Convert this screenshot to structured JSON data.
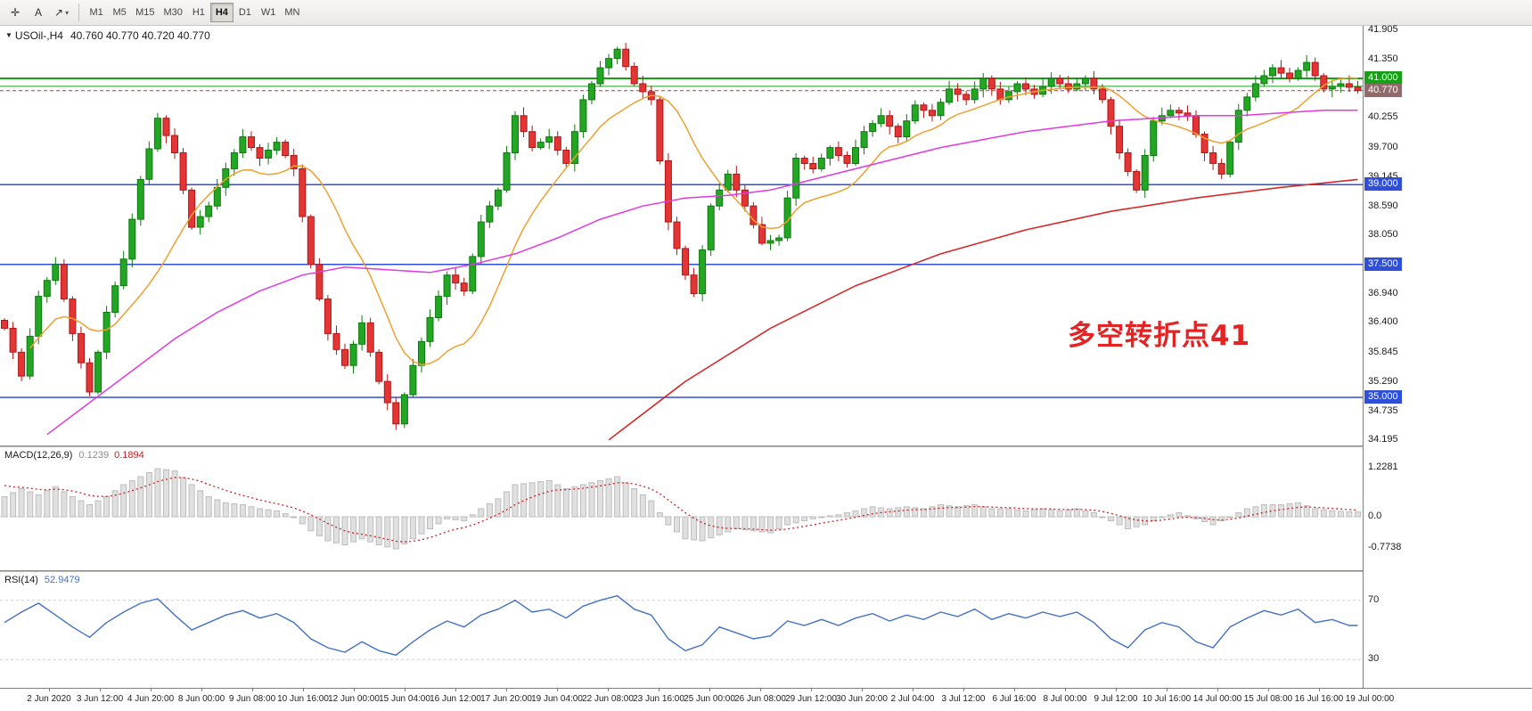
{
  "toolbar": {
    "tools": [
      {
        "name": "crosshair",
        "glyph": "✛"
      },
      {
        "name": "text",
        "glyph": "A"
      },
      {
        "name": "arrows",
        "glyph": "↗",
        "dropdown": "▾"
      }
    ],
    "timeframes": [
      "M1",
      "M5",
      "M15",
      "M30",
      "H1",
      "H4",
      "D1",
      "W1",
      "MN"
    ],
    "active_timeframe": "H4"
  },
  "chart": {
    "dropdown_icon": "▼",
    "title": "USOil-,H4",
    "ohlc": "40.760 40.770 40.720 40.770"
  },
  "indicators": {
    "macd": {
      "label": "MACD(12,26,9)",
      "value_main": "0.1239",
      "value_signal": "0.1894",
      "axis_labels": [
        {
          "text": "1.2281",
          "value": 1.2281
        },
        {
          "text": "0.0",
          "value": 0
        },
        {
          "text": "-0.7738",
          "value": -0.7738
        }
      ]
    },
    "rsi": {
      "label": "RSI(14)",
      "value": "52.9479",
      "levels": [
        70,
        30
      ],
      "axis_labels": [
        {
          "text": "70",
          "value": 70
        },
        {
          "text": "30",
          "value": 30
        }
      ]
    }
  },
  "annotation": {
    "text": "多空转折点41"
  },
  "price_axis": {
    "labels": [
      "41.905",
      "41.350",
      "40.255",
      "39.700",
      "39.145",
      "38.590",
      "38.050",
      "36.940",
      "36.400",
      "35.845",
      "35.290",
      "34.735",
      "34.195"
    ],
    "special": [
      {
        "text": "41.000",
        "price": 41.0,
        "style": "green"
      },
      {
        "text": "40.770",
        "price": 40.77,
        "style": "last"
      },
      {
        "text": "39.000",
        "price": 39.0,
        "style": "blue"
      },
      {
        "text": "37.500",
        "price": 37.5,
        "style": "blue"
      },
      {
        "text": "35.000",
        "price": 35.0,
        "style": "blue"
      }
    ]
  },
  "time_axis": {
    "labels": [
      "2 Jun 2020",
      "3 Jun 12:00",
      "4 Jun 20:00",
      "8 Jun 00:00",
      "9 Jun 08:00",
      "10 Jun 16:00",
      "12 Jun 00:00",
      "15 Jun 04:00",
      "16 Jun 12:00",
      "17 Jun 20:00",
      "19 Jun 04:00",
      "22 Jun 08:00",
      "23 Jun 16:00",
      "25 Jun 00:00",
      "26 Jun 08:00",
      "29 Jun 12:00",
      "30 Jun 20:00",
      "2 Jul 04:00",
      "3 Jul 12:00",
      "6 Jul 16:00",
      "8 Jul 00:00",
      "9 Jul 12:00",
      "10 Jul 16:00",
      "14 Jul 00:00",
      "15 Jul 08:00",
      "16 Jul 16:00",
      "19 Jul 00:00"
    ]
  },
  "chart_data": {
    "type": "candlestick",
    "symbol": "USOil",
    "timeframe": "H4",
    "bars": 160,
    "price_min": 34.195,
    "price_max": 41.905,
    "last_price": 40.77,
    "close_waypoints": [
      [
        0,
        36.3
      ],
      [
        2,
        35.4
      ],
      [
        4,
        36.9
      ],
      [
        6,
        37.5
      ],
      [
        8,
        36.2
      ],
      [
        10,
        35.1
      ],
      [
        12,
        36.6
      ],
      [
        14,
        37.6
      ],
      [
        16,
        39.1
      ],
      [
        18,
        40.25
      ],
      [
        20,
        39.6
      ],
      [
        22,
        38.2
      ],
      [
        24,
        38.6
      ],
      [
        26,
        39.3
      ],
      [
        28,
        39.9
      ],
      [
        30,
        39.5
      ],
      [
        32,
        39.8
      ],
      [
        34,
        39.3
      ],
      [
        36,
        37.5
      ],
      [
        38,
        36.2
      ],
      [
        40,
        35.6
      ],
      [
        42,
        36.4
      ],
      [
        44,
        35.3
      ],
      [
        46,
        34.5
      ],
      [
        48,
        35.6
      ],
      [
        50,
        36.5
      ],
      [
        52,
        37.3
      ],
      [
        54,
        37.0
      ],
      [
        56,
        38.3
      ],
      [
        58,
        38.9
      ],
      [
        60,
        40.3
      ],
      [
        62,
        39.7
      ],
      [
        64,
        39.9
      ],
      [
        66,
        39.4
      ],
      [
        68,
        40.6
      ],
      [
        70,
        41.2
      ],
      [
        72,
        41.55
      ],
      [
        74,
        40.9
      ],
      [
        76,
        40.6
      ],
      [
        78,
        38.3
      ],
      [
        80,
        37.3
      ],
      [
        81,
        36.95
      ],
      [
        83,
        38.6
      ],
      [
        85,
        39.2
      ],
      [
        87,
        38.6
      ],
      [
        89,
        37.9
      ],
      [
        91,
        38.0
      ],
      [
        93,
        39.5
      ],
      [
        95,
        39.3
      ],
      [
        97,
        39.7
      ],
      [
        99,
        39.4
      ],
      [
        101,
        40.0
      ],
      [
        103,
        40.3
      ],
      [
        105,
        39.9
      ],
      [
        107,
        40.5
      ],
      [
        109,
        40.3
      ],
      [
        111,
        40.8
      ],
      [
        113,
        40.6
      ],
      [
        115,
        41.0
      ],
      [
        117,
        40.6
      ],
      [
        119,
        40.9
      ],
      [
        121,
        40.7
      ],
      [
        123,
        41.0
      ],
      [
        125,
        40.8
      ],
      [
        127,
        41.0
      ],
      [
        129,
        40.6
      ],
      [
        131,
        39.6
      ],
      [
        133,
        38.9
      ],
      [
        135,
        40.2
      ],
      [
        137,
        40.4
      ],
      [
        139,
        40.3
      ],
      [
        141,
        39.6
      ],
      [
        143,
        39.2
      ],
      [
        145,
        40.4
      ],
      [
        147,
        40.9
      ],
      [
        149,
        41.2
      ],
      [
        151,
        41.0
      ],
      [
        153,
        41.3
      ],
      [
        155,
        40.8
      ],
      [
        157,
        40.9
      ],
      [
        159,
        40.77
      ]
    ],
    "ma_fast_period": 12,
    "ma_mid_waypoints": [
      [
        5,
        34.3
      ],
      [
        10,
        34.9
      ],
      [
        15,
        35.5
      ],
      [
        20,
        36.1
      ],
      [
        25,
        36.6
      ],
      [
        30,
        37.0
      ],
      [
        35,
        37.3
      ],
      [
        40,
        37.45
      ],
      [
        45,
        37.4
      ],
      [
        50,
        37.35
      ],
      [
        55,
        37.5
      ],
      [
        60,
        37.7
      ],
      [
        65,
        38.0
      ],
      [
        70,
        38.35
      ],
      [
        75,
        38.6
      ],
      [
        80,
        38.75
      ],
      [
        85,
        38.8
      ],
      [
        90,
        38.9
      ],
      [
        95,
        39.1
      ],
      [
        100,
        39.3
      ],
      [
        105,
        39.5
      ],
      [
        110,
        39.7
      ],
      [
        115,
        39.85
      ],
      [
        120,
        40.0
      ],
      [
        125,
        40.1
      ],
      [
        130,
        40.2
      ],
      [
        135,
        40.25
      ],
      [
        140,
        40.3
      ],
      [
        145,
        40.3
      ],
      [
        150,
        40.35
      ],
      [
        155,
        40.4
      ],
      [
        159,
        40.4
      ]
    ],
    "ma_slow_waypoints": [
      [
        71,
        34.2
      ],
      [
        80,
        35.3
      ],
      [
        90,
        36.3
      ],
      [
        100,
        37.1
      ],
      [
        110,
        37.7
      ],
      [
        120,
        38.15
      ],
      [
        130,
        38.5
      ],
      [
        140,
        38.75
      ],
      [
        150,
        38.95
      ],
      [
        159,
        39.1
      ]
    ],
    "hlines": [
      {
        "price": 41.0,
        "style": "green",
        "width": 2
      },
      {
        "price": 40.85,
        "style": "green",
        "width": 1
      },
      {
        "price": 39.0,
        "style": "blue",
        "width": 1.5
      },
      {
        "price": 37.5,
        "style": "blue",
        "width": 1.5
      },
      {
        "price": 35.0,
        "style": "blue",
        "width": 1.5
      },
      {
        "price": 40.77,
        "style": "last",
        "width": 1
      }
    ],
    "macd": {
      "signal_period": 9,
      "signal_start": 0.85,
      "hist_waypoints": [
        [
          0,
          0.5
        ],
        [
          2,
          0.7
        ],
        [
          4,
          0.55
        ],
        [
          6,
          0.75
        ],
        [
          8,
          0.5
        ],
        [
          10,
          0.3
        ],
        [
          12,
          0.5
        ],
        [
          14,
          0.8
        ],
        [
          16,
          1.0
        ],
        [
          18,
          1.2
        ],
        [
          20,
          1.15
        ],
        [
          22,
          0.8
        ],
        [
          24,
          0.5
        ],
        [
          26,
          0.35
        ],
        [
          28,
          0.3
        ],
        [
          30,
          0.2
        ],
        [
          32,
          0.15
        ],
        [
          34,
          0.0
        ],
        [
          36,
          -0.35
        ],
        [
          38,
          -0.6
        ],
        [
          40,
          -0.7
        ],
        [
          42,
          -0.55
        ],
        [
          44,
          -0.7
        ],
        [
          46,
          -0.8
        ],
        [
          48,
          -0.55
        ],
        [
          50,
          -0.3
        ],
        [
          52,
          -0.05
        ],
        [
          54,
          -0.1
        ],
        [
          56,
          0.2
        ],
        [
          58,
          0.45
        ],
        [
          60,
          0.8
        ],
        [
          62,
          0.85
        ],
        [
          64,
          0.9
        ],
        [
          66,
          0.7
        ],
        [
          68,
          0.8
        ],
        [
          70,
          0.9
        ],
        [
          72,
          1.0
        ],
        [
          74,
          0.7
        ],
        [
          76,
          0.4
        ],
        [
          78,
          -0.2
        ],
        [
          80,
          -0.55
        ],
        [
          82,
          -0.6
        ],
        [
          84,
          -0.45
        ],
        [
          86,
          -0.3
        ],
        [
          88,
          -0.35
        ],
        [
          90,
          -0.4
        ],
        [
          92,
          -0.2
        ],
        [
          94,
          -0.1
        ],
        [
          96,
          0.0
        ],
        [
          98,
          0.05
        ],
        [
          100,
          0.15
        ],
        [
          102,
          0.25
        ],
        [
          104,
          0.2
        ],
        [
          106,
          0.25
        ],
        [
          108,
          0.2
        ],
        [
          110,
          0.3
        ],
        [
          112,
          0.25
        ],
        [
          114,
          0.3
        ],
        [
          116,
          0.2
        ],
        [
          118,
          0.2
        ],
        [
          120,
          0.15
        ],
        [
          122,
          0.2
        ],
        [
          124,
          0.15
        ],
        [
          126,
          0.2
        ],
        [
          128,
          0.1
        ],
        [
          130,
          -0.1
        ],
        [
          132,
          -0.3
        ],
        [
          134,
          -0.2
        ],
        [
          136,
          0.0
        ],
        [
          138,
          0.1
        ],
        [
          140,
          -0.05
        ],
        [
          142,
          -0.2
        ],
        [
          144,
          0.0
        ],
        [
          146,
          0.2
        ],
        [
          148,
          0.3
        ],
        [
          150,
          0.3
        ],
        [
          152,
          0.35
        ],
        [
          154,
          0.2
        ],
        [
          156,
          0.15
        ],
        [
          158,
          0.12
        ],
        [
          159,
          0.12
        ]
      ]
    },
    "rsi": {
      "waypoints": [
        [
          0,
          55
        ],
        [
          2,
          62
        ],
        [
          4,
          68
        ],
        [
          6,
          60
        ],
        [
          8,
          52
        ],
        [
          10,
          45
        ],
        [
          12,
          55
        ],
        [
          14,
          62
        ],
        [
          16,
          68
        ],
        [
          18,
          71
        ],
        [
          20,
          60
        ],
        [
          22,
          50
        ],
        [
          24,
          55
        ],
        [
          26,
          60
        ],
        [
          28,
          63
        ],
        [
          30,
          58
        ],
        [
          32,
          61
        ],
        [
          34,
          55
        ],
        [
          36,
          44
        ],
        [
          38,
          38
        ],
        [
          40,
          35
        ],
        [
          42,
          42
        ],
        [
          44,
          36
        ],
        [
          46,
          33
        ],
        [
          48,
          42
        ],
        [
          50,
          50
        ],
        [
          52,
          56
        ],
        [
          54,
          52
        ],
        [
          56,
          60
        ],
        [
          58,
          64
        ],
        [
          60,
          70
        ],
        [
          62,
          62
        ],
        [
          64,
          64
        ],
        [
          66,
          58
        ],
        [
          68,
          66
        ],
        [
          70,
          70
        ],
        [
          72,
          73
        ],
        [
          74,
          64
        ],
        [
          76,
          60
        ],
        [
          78,
          44
        ],
        [
          80,
          36
        ],
        [
          82,
          40
        ],
        [
          84,
          52
        ],
        [
          86,
          48
        ],
        [
          88,
          44
        ],
        [
          90,
          46
        ],
        [
          92,
          56
        ],
        [
          94,
          53
        ],
        [
          96,
          57
        ],
        [
          98,
          53
        ],
        [
          100,
          58
        ],
        [
          102,
          61
        ],
        [
          104,
          56
        ],
        [
          106,
          60
        ],
        [
          108,
          57
        ],
        [
          110,
          62
        ],
        [
          112,
          59
        ],
        [
          114,
          64
        ],
        [
          116,
          57
        ],
        [
          118,
          61
        ],
        [
          120,
          58
        ],
        [
          122,
          62
        ],
        [
          124,
          59
        ],
        [
          126,
          62
        ],
        [
          128,
          55
        ],
        [
          130,
          44
        ],
        [
          132,
          38
        ],
        [
          134,
          50
        ],
        [
          136,
          55
        ],
        [
          138,
          52
        ],
        [
          140,
          42
        ],
        [
          142,
          38
        ],
        [
          144,
          52
        ],
        [
          146,
          58
        ],
        [
          148,
          63
        ],
        [
          150,
          60
        ],
        [
          152,
          64
        ],
        [
          154,
          55
        ],
        [
          156,
          57
        ],
        [
          158,
          53
        ],
        [
          159,
          53
        ]
      ]
    }
  },
  "colors": {
    "up": "#23a623",
    "up_stroke": "#0c7a0c",
    "down": "#e23535",
    "down_stroke": "#b31515",
    "ma_fast": "#efa030",
    "ma_mid": "#e03ae0",
    "ma_slow": "#d42a2a",
    "hline_blue": "#2f4fd8",
    "hline_green": "#17a017",
    "last_price_line": "#c43333",
    "macd_bar": "#e0e0e0",
    "macd_bar_stroke": "#bdbdbd",
    "macd_signal": "#d02020",
    "rsi_line": "#4472c4",
    "annotation": "#e32424"
  }
}
